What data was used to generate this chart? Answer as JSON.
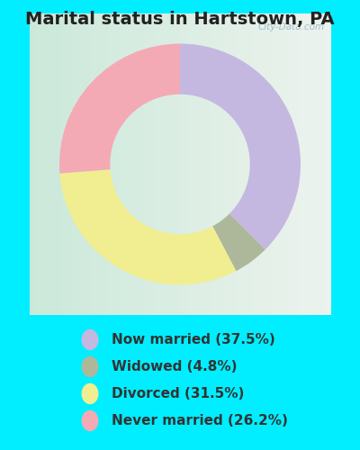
{
  "title": "Marital status in Hartstown, PA",
  "slices": [
    37.5,
    4.8,
    31.5,
    26.2
  ],
  "labels": [
    "Now married (37.5%)",
    "Widowed (4.8%)",
    "Divorced (31.5%)",
    "Never married (26.2%)"
  ],
  "colors": [
    "#c4b8e0",
    "#adb89a",
    "#f0ee90",
    "#f4aab4"
  ],
  "background_color": "#00eeff",
  "chart_bg_left": "#c8e8d8",
  "chart_bg_right": "#f0f4f0",
  "startangle": 90,
  "donut_width": 0.42,
  "title_fontsize": 14,
  "legend_fontsize": 11,
  "watermark": "City-Data.com"
}
